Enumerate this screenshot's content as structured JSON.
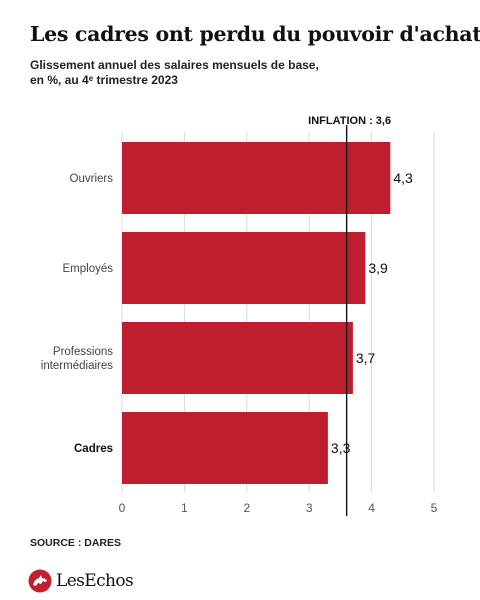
{
  "header": {
    "title": "Les cadres ont perdu du pouvoir d'achat",
    "subtitle_line1": "Glissement annuel des salaires mensuels de base,",
    "subtitle_line2": "en %, au 4ᵉ trimestre 2023"
  },
  "chart_data": {
    "type": "bar",
    "orientation": "horizontal",
    "title": "Les cadres ont perdu du pouvoir d'achat",
    "subtitle": "Glissement annuel des salaires mensuels de base, en %, au 4ᵉ trimestre 2023",
    "categories": [
      [
        "Ouvriers"
      ],
      [
        "Employés"
      ],
      [
        "Professions",
        "intermédiaires"
      ],
      [
        "Cadres"
      ]
    ],
    "values": [
      4.3,
      3.9,
      3.7,
      3.3
    ],
    "value_labels": [
      "4,3",
      "3,9",
      "3,7",
      "3,3"
    ],
    "highlight_category_index": 3,
    "xlim": [
      0,
      5
    ],
    "xticks": [
      0,
      1,
      2,
      3,
      4,
      5
    ],
    "grid": "vertical",
    "reference_line": {
      "label": "INFLATION : 3,6",
      "value": 3.6
    },
    "colors": {
      "bar": "#bf1e2e",
      "grid": "#d9d9d9",
      "reference": "#111111"
    }
  },
  "footer": {
    "source": "SOURCE : DARES",
    "logo_text": "LesEchos",
    "logo_icon": "les-echos-horse-icon"
  }
}
